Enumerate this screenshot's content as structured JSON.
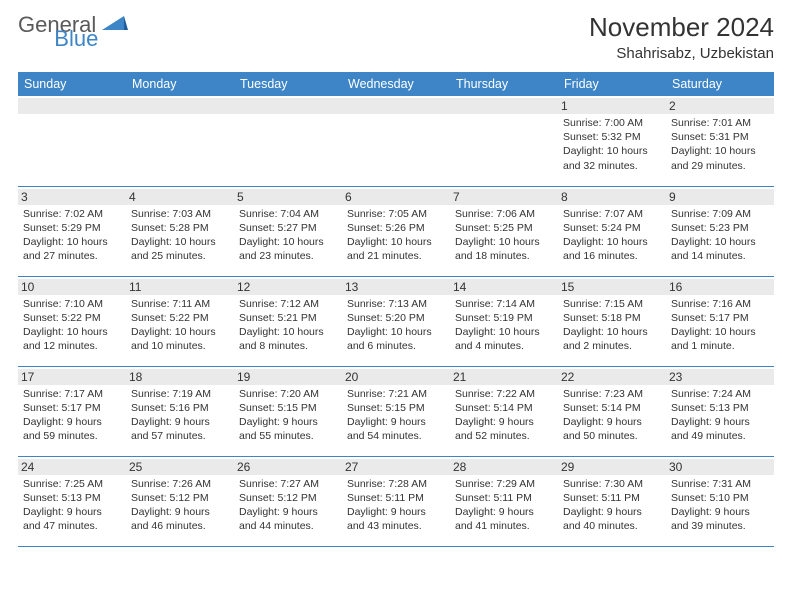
{
  "logo": {
    "text1": "General",
    "text2": "Blue"
  },
  "title": "November 2024",
  "location": "Shahrisabz, Uzbekistan",
  "colors": {
    "header_bg": "#3d85c6",
    "header_fg": "#ffffff",
    "daynum_bg": "#eaeaea",
    "border": "#3d85c6",
    "logo_accent": "#3d85c6"
  },
  "weekdays": [
    "Sunday",
    "Monday",
    "Tuesday",
    "Wednesday",
    "Thursday",
    "Friday",
    "Saturday"
  ],
  "cells": [
    {
      "n": "",
      "t": ""
    },
    {
      "n": "",
      "t": ""
    },
    {
      "n": "",
      "t": ""
    },
    {
      "n": "",
      "t": ""
    },
    {
      "n": "",
      "t": ""
    },
    {
      "n": "1",
      "t": "Sunrise: 7:00 AM\nSunset: 5:32 PM\nDaylight: 10 hours and 32 minutes."
    },
    {
      "n": "2",
      "t": "Sunrise: 7:01 AM\nSunset: 5:31 PM\nDaylight: 10 hours and 29 minutes."
    },
    {
      "n": "3",
      "t": "Sunrise: 7:02 AM\nSunset: 5:29 PM\nDaylight: 10 hours and 27 minutes."
    },
    {
      "n": "4",
      "t": "Sunrise: 7:03 AM\nSunset: 5:28 PM\nDaylight: 10 hours and 25 minutes."
    },
    {
      "n": "5",
      "t": "Sunrise: 7:04 AM\nSunset: 5:27 PM\nDaylight: 10 hours and 23 minutes."
    },
    {
      "n": "6",
      "t": "Sunrise: 7:05 AM\nSunset: 5:26 PM\nDaylight: 10 hours and 21 minutes."
    },
    {
      "n": "7",
      "t": "Sunrise: 7:06 AM\nSunset: 5:25 PM\nDaylight: 10 hours and 18 minutes."
    },
    {
      "n": "8",
      "t": "Sunrise: 7:07 AM\nSunset: 5:24 PM\nDaylight: 10 hours and 16 minutes."
    },
    {
      "n": "9",
      "t": "Sunrise: 7:09 AM\nSunset: 5:23 PM\nDaylight: 10 hours and 14 minutes."
    },
    {
      "n": "10",
      "t": "Sunrise: 7:10 AM\nSunset: 5:22 PM\nDaylight: 10 hours and 12 minutes."
    },
    {
      "n": "11",
      "t": "Sunrise: 7:11 AM\nSunset: 5:22 PM\nDaylight: 10 hours and 10 minutes."
    },
    {
      "n": "12",
      "t": "Sunrise: 7:12 AM\nSunset: 5:21 PM\nDaylight: 10 hours and 8 minutes."
    },
    {
      "n": "13",
      "t": "Sunrise: 7:13 AM\nSunset: 5:20 PM\nDaylight: 10 hours and 6 minutes."
    },
    {
      "n": "14",
      "t": "Sunrise: 7:14 AM\nSunset: 5:19 PM\nDaylight: 10 hours and 4 minutes."
    },
    {
      "n": "15",
      "t": "Sunrise: 7:15 AM\nSunset: 5:18 PM\nDaylight: 10 hours and 2 minutes."
    },
    {
      "n": "16",
      "t": "Sunrise: 7:16 AM\nSunset: 5:17 PM\nDaylight: 10 hours and 1 minute."
    },
    {
      "n": "17",
      "t": "Sunrise: 7:17 AM\nSunset: 5:17 PM\nDaylight: 9 hours and 59 minutes."
    },
    {
      "n": "18",
      "t": "Sunrise: 7:19 AM\nSunset: 5:16 PM\nDaylight: 9 hours and 57 minutes."
    },
    {
      "n": "19",
      "t": "Sunrise: 7:20 AM\nSunset: 5:15 PM\nDaylight: 9 hours and 55 minutes."
    },
    {
      "n": "20",
      "t": "Sunrise: 7:21 AM\nSunset: 5:15 PM\nDaylight: 9 hours and 54 minutes."
    },
    {
      "n": "21",
      "t": "Sunrise: 7:22 AM\nSunset: 5:14 PM\nDaylight: 9 hours and 52 minutes."
    },
    {
      "n": "22",
      "t": "Sunrise: 7:23 AM\nSunset: 5:14 PM\nDaylight: 9 hours and 50 minutes."
    },
    {
      "n": "23",
      "t": "Sunrise: 7:24 AM\nSunset: 5:13 PM\nDaylight: 9 hours and 49 minutes."
    },
    {
      "n": "24",
      "t": "Sunrise: 7:25 AM\nSunset: 5:13 PM\nDaylight: 9 hours and 47 minutes."
    },
    {
      "n": "25",
      "t": "Sunrise: 7:26 AM\nSunset: 5:12 PM\nDaylight: 9 hours and 46 minutes."
    },
    {
      "n": "26",
      "t": "Sunrise: 7:27 AM\nSunset: 5:12 PM\nDaylight: 9 hours and 44 minutes."
    },
    {
      "n": "27",
      "t": "Sunrise: 7:28 AM\nSunset: 5:11 PM\nDaylight: 9 hours and 43 minutes."
    },
    {
      "n": "28",
      "t": "Sunrise: 7:29 AM\nSunset: 5:11 PM\nDaylight: 9 hours and 41 minutes."
    },
    {
      "n": "29",
      "t": "Sunrise: 7:30 AM\nSunset: 5:11 PM\nDaylight: 9 hours and 40 minutes."
    },
    {
      "n": "30",
      "t": "Sunrise: 7:31 AM\nSunset: 5:10 PM\nDaylight: 9 hours and 39 minutes."
    }
  ]
}
